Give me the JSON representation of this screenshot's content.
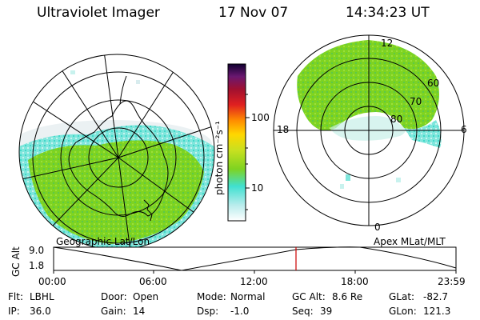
{
  "header": {
    "instrument": "Ultraviolet Imager",
    "date": "17 Nov 07",
    "time": "14:34:23 UT"
  },
  "colorbar": {
    "unit_label": "photon cm⁻²s⁻¹",
    "ticks": [
      "100",
      "10"
    ],
    "scale": "log"
  },
  "left_panel": {
    "label": "Geographic Lat/Lon",
    "projection": "geographic"
  },
  "right_panel": {
    "label": "Apex MLat/MLT",
    "mlt_labels": [
      "12",
      "18",
      "6",
      "0"
    ],
    "mlat_labels": [
      "60",
      "70",
      "80"
    ]
  },
  "altitude_plot": {
    "ylabel": "GC Alt",
    "yticks": [
      "9.0",
      "1.8"
    ],
    "xticks": [
      "00:00",
      "06:00",
      "12:00",
      "18:00",
      "23:59"
    ],
    "current_marker_time": "14:34"
  },
  "info": {
    "flt_label": "Flt:",
    "flt_value": "LBHL",
    "ip_label": "IP:",
    "ip_value": "36.0",
    "door_label": "Door:",
    "door_value": "Open",
    "gain_label": "Gain:",
    "gain_value": "14",
    "mode_label": "Mode:",
    "mode_value": "Normal",
    "dsp_label": "Dsp:",
    "dsp_value": "-1.0",
    "gcalt_label": "GC Alt:",
    "gcalt_value": "8.6 Re",
    "seq_label": "Seq:",
    "seq_value": "39",
    "glat_label": "GLat:",
    "glat_value": "-82.7",
    "glon_label": "GLon:",
    "glon_value": "121.3"
  },
  "colors": {
    "marker": "#cc0000",
    "aurora_green": "#7ed321",
    "aurora_cyan": "#40e0d0"
  }
}
